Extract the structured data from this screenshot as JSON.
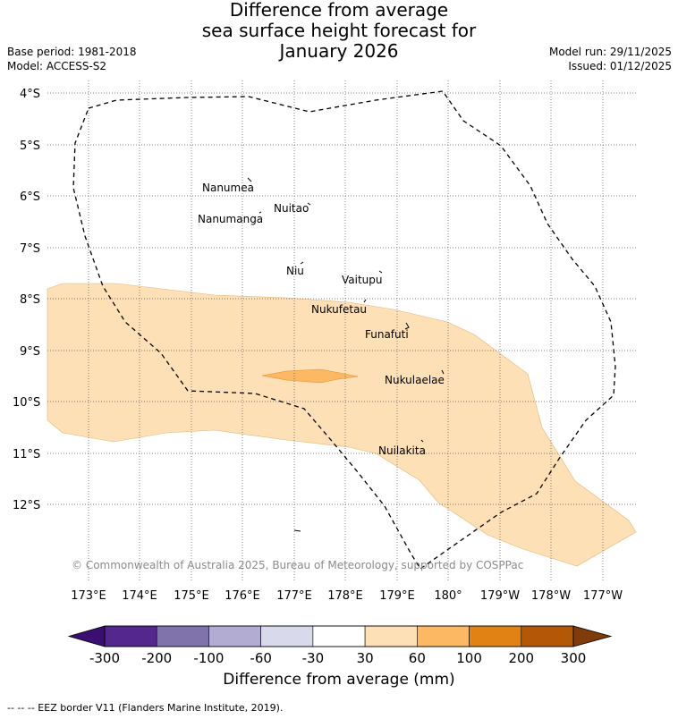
{
  "title": {
    "line1": "Difference from average",
    "line2": "sea surface height forecast for",
    "line3": "January 2026"
  },
  "meta": {
    "base_period": "Base period: 1981-2018",
    "model": "Model: ACCESS-S2",
    "model_run": "Model run: 29/11/2025",
    "issued": "Issued: 01/12/2025"
  },
  "map": {
    "lat_labels": [
      "4°S",
      "5°S",
      "6°S",
      "7°S",
      "8°S",
      "9°S",
      "10°S",
      "11°S",
      "12°S"
    ],
    "lon_labels": [
      "173°E",
      "174°E",
      "175°E",
      "176°E",
      "177°E",
      "178°E",
      "179°E",
      "180°",
      "179°W",
      "178°W",
      "177°W"
    ],
    "islands": [
      {
        "name": "Nanumea"
      },
      {
        "name": "Nuitao"
      },
      {
        "name": "Nanumanga"
      },
      {
        "name": "Niu"
      },
      {
        "name": "Vaitupu"
      },
      {
        "name": "Nukufetau"
      },
      {
        "name": "Funafuti"
      },
      {
        "name": "Nukulaelae"
      },
      {
        "name": "Nuilakita"
      }
    ],
    "copyright": "© Commonwealth of Australia 2025, Bureau of Meteorology, supported by COSPPac"
  },
  "colorbar": {
    "ticks": [
      "-300",
      "-200",
      "-100",
      "-60",
      "-30",
      "30",
      "60",
      "100",
      "200",
      "300"
    ],
    "colors": [
      "#3b0f6f",
      "#54278f",
      "#8073ac",
      "#b2abd2",
      "#d8daeb",
      "#ffffff",
      "#fee0b6",
      "#fdb863",
      "#e08214",
      "#b35806",
      "#7f3b08"
    ],
    "label": "Difference from average (mm)"
  },
  "footer": "--  --  -- EEZ border V11 (Flanders Marine Institute, 2019)."
}
